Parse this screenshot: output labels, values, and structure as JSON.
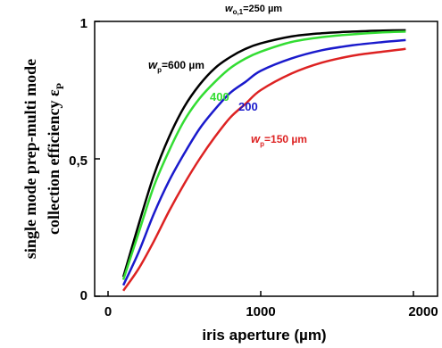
{
  "chart_data": {
    "type": "line",
    "title_italic": "w",
    "title_sub": "o,1",
    "title_rest": "=250 µm",
    "xlabel": "iris aperture (µm)",
    "ylabel_line1": "single mode prep-multi mode",
    "ylabel_line2_main": "collection efficiency ε",
    "ylabel_line2_sub": "P",
    "xlim": [
      0,
      2000
    ],
    "ylim": [
      0,
      1
    ],
    "x_ticks": [
      "0",
      "1000",
      "2000"
    ],
    "y_ticks": [
      "0",
      "0,5",
      "1"
    ],
    "grid": false,
    "series": [
      {
        "name": "600 µm",
        "label_italic": "w",
        "label_sub": "p",
        "label_rest": "=600 µm",
        "color": "#000000",
        "x": [
          100,
          200,
          300,
          400,
          500,
          600,
          700,
          800,
          900,
          1000,
          1200,
          1400,
          1600,
          1800,
          1950
        ],
        "y": [
          0.07,
          0.26,
          0.44,
          0.58,
          0.69,
          0.77,
          0.83,
          0.87,
          0.9,
          0.92,
          0.945,
          0.957,
          0.963,
          0.967,
          0.968
        ]
      },
      {
        "name": "400",
        "label_text": "400",
        "color": "#33dd33",
        "x": [
          100,
          200,
          300,
          400,
          500,
          600,
          700,
          800,
          900,
          1000,
          1200,
          1400,
          1600,
          1800,
          1950
        ],
        "y": [
          0.06,
          0.23,
          0.4,
          0.53,
          0.64,
          0.72,
          0.78,
          0.83,
          0.865,
          0.89,
          0.925,
          0.943,
          0.953,
          0.96,
          0.963
        ]
      },
      {
        "name": "200",
        "label_text": "200",
        "color": "#1a1acc",
        "x": [
          100,
          200,
          300,
          400,
          500,
          600,
          700,
          800,
          900,
          1000,
          1200,
          1400,
          1600,
          1800,
          1950
        ],
        "y": [
          0.04,
          0.16,
          0.3,
          0.42,
          0.52,
          0.61,
          0.68,
          0.74,
          0.78,
          0.82,
          0.865,
          0.895,
          0.913,
          0.925,
          0.932
        ]
      },
      {
        "name": "150 µm",
        "label_italic": "w",
        "label_sub": "p",
        "label_rest": "=150 µm",
        "color": "#dd2222",
        "x": [
          100,
          200,
          300,
          400,
          500,
          600,
          700,
          800,
          900,
          1000,
          1200,
          1400,
          1600,
          1800,
          1950
        ],
        "y": [
          0.02,
          0.1,
          0.2,
          0.31,
          0.41,
          0.5,
          0.58,
          0.65,
          0.7,
          0.75,
          0.81,
          0.85,
          0.875,
          0.89,
          0.9
        ]
      }
    ]
  }
}
